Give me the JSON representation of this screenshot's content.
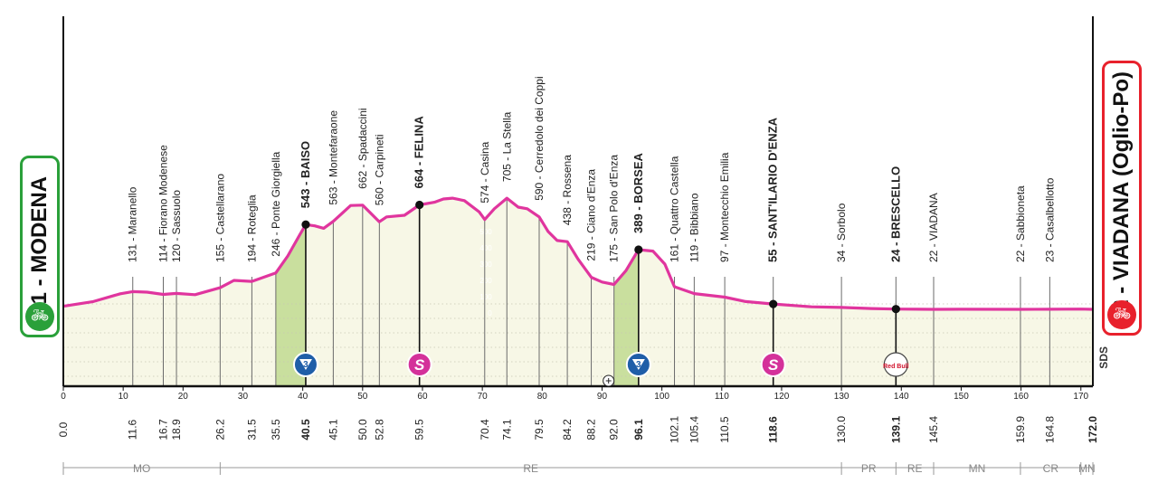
{
  "colors": {
    "profile": "#e0359e",
    "fill": "#f7f7e6",
    "climb": "#c9df9e",
    "axis": "#111111",
    "start": "#2aa03a",
    "end": "#e8212c",
    "sprint": "#d4319a",
    "kom": "#1f5ea8"
  },
  "start": {
    "label": "41 - MODENA",
    "icon": "bicycle-icon"
  },
  "finish": {
    "label": "22 - VIADANA (Oglio-Po)",
    "icon": "bicycle-icon"
  },
  "brand_mark": "SDS",
  "chart_data": {
    "type": "area",
    "title": "",
    "xlabel": "",
    "ylabel": "",
    "xlim": [
      0,
      172
    ],
    "x_ticks": [
      0,
      10,
      20,
      30,
      40,
      50,
      60,
      70,
      80,
      90,
      100,
      110,
      120,
      130,
      140,
      150,
      160,
      170
    ],
    "y_ticks": [
      0,
      100,
      200,
      300,
      400,
      500,
      600
    ],
    "ylim": [
      -450,
      800
    ],
    "profile": [
      [
        0,
        41
      ],
      [
        5,
        70
      ],
      [
        9.5,
        118
      ],
      [
        11.6,
        131
      ],
      [
        14,
        128
      ],
      [
        16.7,
        114
      ],
      [
        18.9,
        120
      ],
      [
        22,
        112
      ],
      [
        26.2,
        155
      ],
      [
        28.5,
        200
      ],
      [
        31.5,
        194
      ],
      [
        35.5,
        246
      ],
      [
        37.5,
        350
      ],
      [
        39.5,
        480
      ],
      [
        40.5,
        543
      ],
      [
        42,
        535
      ],
      [
        43.5,
        520
      ],
      [
        45.1,
        563
      ],
      [
        48,
        660
      ],
      [
        50,
        662
      ],
      [
        52.8,
        560
      ],
      [
        54,
        590
      ],
      [
        57,
        600
      ],
      [
        59.5,
        664
      ],
      [
        62,
        680
      ],
      [
        63.5,
        700
      ],
      [
        65,
        705
      ],
      [
        67,
        690
      ],
      [
        69.5,
        620
      ],
      [
        70.4,
        574
      ],
      [
        72,
        640
      ],
      [
        74.1,
        705
      ],
      [
        76,
        650
      ],
      [
        77.5,
        640
      ],
      [
        79.5,
        590
      ],
      [
        81,
        500
      ],
      [
        82.5,
        445
      ],
      [
        84.2,
        438
      ],
      [
        86,
        330
      ],
      [
        88.2,
        219
      ],
      [
        90,
        190
      ],
      [
        92,
        175
      ],
      [
        94,
        260
      ],
      [
        96.1,
        389
      ],
      [
        98.5,
        380
      ],
      [
        100.5,
        300
      ],
      [
        102.1,
        161
      ],
      [
        105.4,
        119
      ],
      [
        110.5,
        97
      ],
      [
        114,
        70
      ],
      [
        118.6,
        55
      ],
      [
        125,
        38
      ],
      [
        130,
        34
      ],
      [
        135,
        27
      ],
      [
        139.1,
        24
      ],
      [
        145.4,
        22
      ],
      [
        150,
        23
      ],
      [
        159.9,
        22
      ],
      [
        164.8,
        23
      ],
      [
        170,
        24
      ],
      [
        172,
        22
      ]
    ],
    "climb_zones": [
      [
        35.5,
        40.5
      ],
      [
        92,
        96.1
      ]
    ],
    "places": [
      {
        "km": 11.6,
        "name": "131 - Maranello",
        "bold": false
      },
      {
        "km": 16.7,
        "name": "114 - Fiorano Modenese",
        "bold": false
      },
      {
        "km": 18.9,
        "name": "120 - Sassuolo",
        "bold": false
      },
      {
        "km": 26.2,
        "name": "155 - Castellarano",
        "bold": false
      },
      {
        "km": 31.5,
        "name": "194 - Roteglia",
        "bold": false
      },
      {
        "km": 35.5,
        "name": "246 - Ponte Giorgiella",
        "bold": false
      },
      {
        "km": 40.5,
        "name": "543 - BAISO",
        "bold": true
      },
      {
        "km": 45.1,
        "name": "563 - Montefaraone",
        "bold": false
      },
      {
        "km": 50.0,
        "name": "662 - Spadaccini",
        "bold": false
      },
      {
        "km": 52.8,
        "name": "560 - Carpineti",
        "bold": false
      },
      {
        "km": 59.5,
        "name": "664 - FELINA",
        "bold": true
      },
      {
        "km": 70.4,
        "name": "574 - Casina",
        "bold": false
      },
      {
        "km": 74.1,
        "name": "705 - La Stella",
        "bold": false
      },
      {
        "km": 79.5,
        "name": "590 - Cerredolo dei Coppi",
        "bold": false
      },
      {
        "km": 84.2,
        "name": "438 - Rossena",
        "bold": false
      },
      {
        "km": 88.2,
        "name": "219 - Ciano d'Enza",
        "bold": false
      },
      {
        "km": 92.0,
        "name": "175 - San Polo d'Enza",
        "bold": false
      },
      {
        "km": 96.1,
        "name": "389 - BORSEA",
        "bold": true
      },
      {
        "km": 102.1,
        "name": "161 - Quattro Castella",
        "bold": false
      },
      {
        "km": 105.4,
        "name": "119 - Bibbiano",
        "bold": false
      },
      {
        "km": 110.5,
        "name": "97 - Montecchio Emilia",
        "bold": false
      },
      {
        "km": 118.6,
        "name": "55 - SANT'ILARIO D'ENZA",
        "bold": true
      },
      {
        "km": 130.0,
        "name": "34 - Sorbolo",
        "bold": false
      },
      {
        "km": 139.1,
        "name": "24 - BRESCELLO",
        "bold": true
      },
      {
        "km": 145.4,
        "name": "22 - VIADANA",
        "bold": false
      },
      {
        "km": 159.9,
        "name": "22 - Sabbioneta",
        "bold": false
      },
      {
        "km": 164.8,
        "name": "23 - Casalbellotto",
        "bold": false
      }
    ],
    "km_labels": [
      {
        "km": 0.0,
        "label": "0.0",
        "bold": false
      },
      {
        "km": 11.6,
        "label": "11.6",
        "bold": false
      },
      {
        "km": 16.7,
        "label": "16.7",
        "bold": false
      },
      {
        "km": 18.9,
        "label": "18.9",
        "bold": false
      },
      {
        "km": 26.2,
        "label": "26.2",
        "bold": false
      },
      {
        "km": 31.5,
        "label": "31.5",
        "bold": false
      },
      {
        "km": 35.5,
        "label": "35.5",
        "bold": false
      },
      {
        "km": 40.5,
        "label": "40.5",
        "bold": true
      },
      {
        "km": 45.1,
        "label": "45.1",
        "bold": false
      },
      {
        "km": 50.0,
        "label": "50.0",
        "bold": false
      },
      {
        "km": 52.8,
        "label": "52.8",
        "bold": false
      },
      {
        "km": 59.5,
        "label": "59.5",
        "bold": false
      },
      {
        "km": 70.4,
        "label": "70.4",
        "bold": false
      },
      {
        "km": 74.1,
        "label": "74.1",
        "bold": false
      },
      {
        "km": 79.5,
        "label": "79.5",
        "bold": false
      },
      {
        "km": 84.2,
        "label": "84.2",
        "bold": false
      },
      {
        "km": 88.2,
        "label": "88.2",
        "bold": false
      },
      {
        "km": 92.0,
        "label": "92.0",
        "bold": false
      },
      {
        "km": 96.1,
        "label": "96.1",
        "bold": true
      },
      {
        "km": 102.1,
        "label": "102.1",
        "bold": false
      },
      {
        "km": 105.4,
        "label": "105.4",
        "bold": false
      },
      {
        "km": 110.5,
        "label": "110.5",
        "bold": false
      },
      {
        "km": 118.6,
        "label": "118.6",
        "bold": true
      },
      {
        "km": 130.0,
        "label": "130.0",
        "bold": false
      },
      {
        "km": 139.1,
        "label": "139.1",
        "bold": true
      },
      {
        "km": 145.4,
        "label": "145.4",
        "bold": false
      },
      {
        "km": 159.9,
        "label": "159.9",
        "bold": false
      },
      {
        "km": 164.8,
        "label": "164.8",
        "bold": false
      },
      {
        "km": 172.0,
        "label": "172.0",
        "bold": true
      }
    ],
    "key_points": [
      {
        "km": 40.5,
        "type": "kom",
        "label": "3"
      },
      {
        "km": 59.5,
        "type": "sprint",
        "label": "S"
      },
      {
        "km": 96.1,
        "type": "kom",
        "label": "3"
      },
      {
        "km": 118.6,
        "type": "sprint",
        "label": "S"
      },
      {
        "km": 139.1,
        "type": "redbull",
        "label": "Red Bull"
      }
    ],
    "feed_zone_km": 92.0,
    "provinces": [
      {
        "from": 0,
        "to": 26.2,
        "label": "MO"
      },
      {
        "from": 26.2,
        "to": 130.0,
        "label": "RE"
      },
      {
        "from": 130.0,
        "to": 139.1,
        "label": "PR"
      },
      {
        "from": 139.1,
        "to": 145.4,
        "label": "RE"
      },
      {
        "from": 145.4,
        "to": 159.9,
        "label": "MN"
      },
      {
        "from": 159.9,
        "to": 170.0,
        "label": "CR"
      },
      {
        "from": 170.0,
        "to": 172.0,
        "label": "MN"
      }
    ]
  }
}
